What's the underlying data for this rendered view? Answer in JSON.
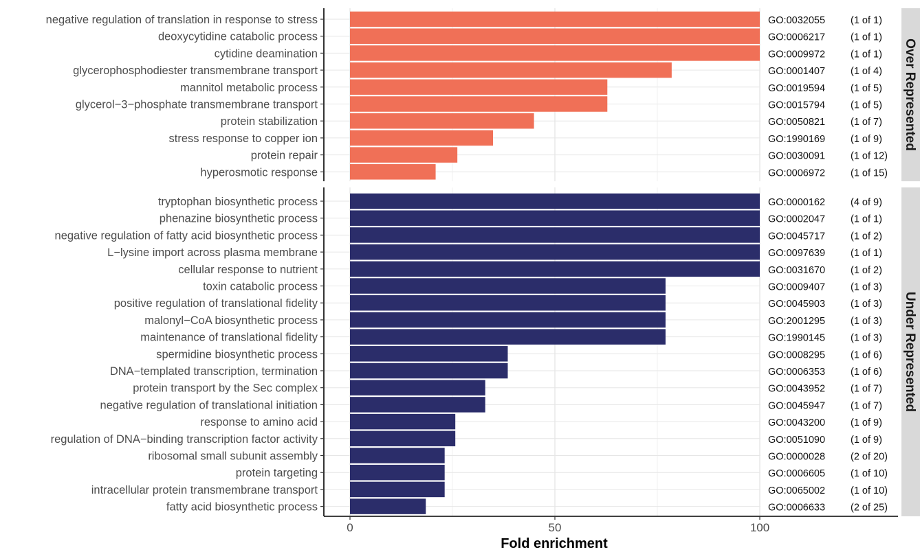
{
  "chart_data": {
    "type": "bar",
    "orientation": "horizontal",
    "xlabel": "Fold enrichment",
    "xlim": [
      -6,
      125
    ],
    "xticks": [
      0,
      50,
      100
    ],
    "grid": true,
    "colors": {
      "over": "#f07057",
      "under": "#2b2d6a",
      "strip": "#d9d9d9"
    },
    "panels": [
      {
        "strip_label": "Over Represented",
        "series": "over",
        "bars": [
          {
            "label": "negative regulation of translation in response to stress",
            "value": 100,
            "go": "GO:0032055",
            "count": "(1 of 1)"
          },
          {
            "label": "deoxycytidine catabolic process",
            "value": 100,
            "go": "GO:0006217",
            "count": "(1 of 1)"
          },
          {
            "label": "cytidine deamination",
            "value": 100,
            "go": "GO:0009972",
            "count": "(1 of 1)"
          },
          {
            "label": "glycerophosphodiester transmembrane transport",
            "value": 78.5,
            "go": "GO:0001407",
            "count": "(1 of 4)"
          },
          {
            "label": "mannitol metabolic process",
            "value": 62.8,
            "go": "GO:0019594",
            "count": "(1 of 5)"
          },
          {
            "label": "glycerol−3−phosphate transmembrane transport",
            "value": 62.8,
            "go": "GO:0015794",
            "count": "(1 of 5)"
          },
          {
            "label": "protein stabilization",
            "value": 44.9,
            "go": "GO:0050821",
            "count": "(1 of 7)"
          },
          {
            "label": "stress response to copper ion",
            "value": 34.9,
            "go": "GO:1990169",
            "count": "(1 of 9)"
          },
          {
            "label": "protein repair",
            "value": 26.2,
            "go": "GO:0030091",
            "count": "(1 of 12)"
          },
          {
            "label": "hyperosmotic response",
            "value": 20.9,
            "go": "GO:0006972",
            "count": "(1 of 15)"
          }
        ]
      },
      {
        "strip_label": "Under Represented",
        "series": "under",
        "bars": [
          {
            "label": "tryptophan biosynthetic process",
            "value": 100,
            "go": "GO:0000162",
            "count": "(4 of 9)"
          },
          {
            "label": "phenazine biosynthetic process",
            "value": 100,
            "go": "GO:0002047",
            "count": "(1 of 1)"
          },
          {
            "label": "negative regulation of fatty acid biosynthetic process",
            "value": 100,
            "go": "GO:0045717",
            "count": "(1 of 2)"
          },
          {
            "label": "L−lysine import across plasma membrane",
            "value": 100,
            "go": "GO:0097639",
            "count": "(1 of 1)"
          },
          {
            "label": "cellular response to nutrient",
            "value": 100,
            "go": "GO:0031670",
            "count": "(1 of 2)"
          },
          {
            "label": "toxin catabolic process",
            "value": 77,
            "go": "GO:0009407",
            "count": "(1 of 3)"
          },
          {
            "label": "positive regulation of translational fidelity",
            "value": 77,
            "go": "GO:0045903",
            "count": "(1 of 3)"
          },
          {
            "label": "malonyl−CoA biosynthetic process",
            "value": 77,
            "go": "GO:2001295",
            "count": "(1 of 3)"
          },
          {
            "label": "maintenance of translational fidelity",
            "value": 77,
            "go": "GO:1990145",
            "count": "(1 of 3)"
          },
          {
            "label": "spermidine biosynthetic process",
            "value": 38.5,
            "go": "GO:0008295",
            "count": "(1 of 6)"
          },
          {
            "label": "DNA−templated transcription, termination",
            "value": 38.5,
            "go": "GO:0006353",
            "count": "(1 of 6)"
          },
          {
            "label": "protein transport by the Sec complex",
            "value": 33,
            "go": "GO:0043952",
            "count": "(1 of 7)"
          },
          {
            "label": "negative regulation of translational initiation",
            "value": 33,
            "go": "GO:0045947",
            "count": "(1 of 7)"
          },
          {
            "label": "response to amino acid",
            "value": 25.7,
            "go": "GO:0043200",
            "count": "(1 of 9)"
          },
          {
            "label": "regulation of DNA−binding transcription factor activity",
            "value": 25.7,
            "go": "GO:0051090",
            "count": "(1 of 9)"
          },
          {
            "label": "ribosomal small subunit assembly",
            "value": 23.1,
            "go": "GO:0000028",
            "count": "(2 of 20)"
          },
          {
            "label": "protein targeting",
            "value": 23.1,
            "go": "GO:0006605",
            "count": "(1 of 10)"
          },
          {
            "label": "intracellular protein transmembrane transport",
            "value": 23.1,
            "go": "GO:0065002",
            "count": "(1 of 10)"
          },
          {
            "label": "fatty acid biosynthetic process",
            "value": 18.5,
            "go": "GO:0006633",
            "count": "(2 of 25)"
          }
        ]
      }
    ]
  }
}
